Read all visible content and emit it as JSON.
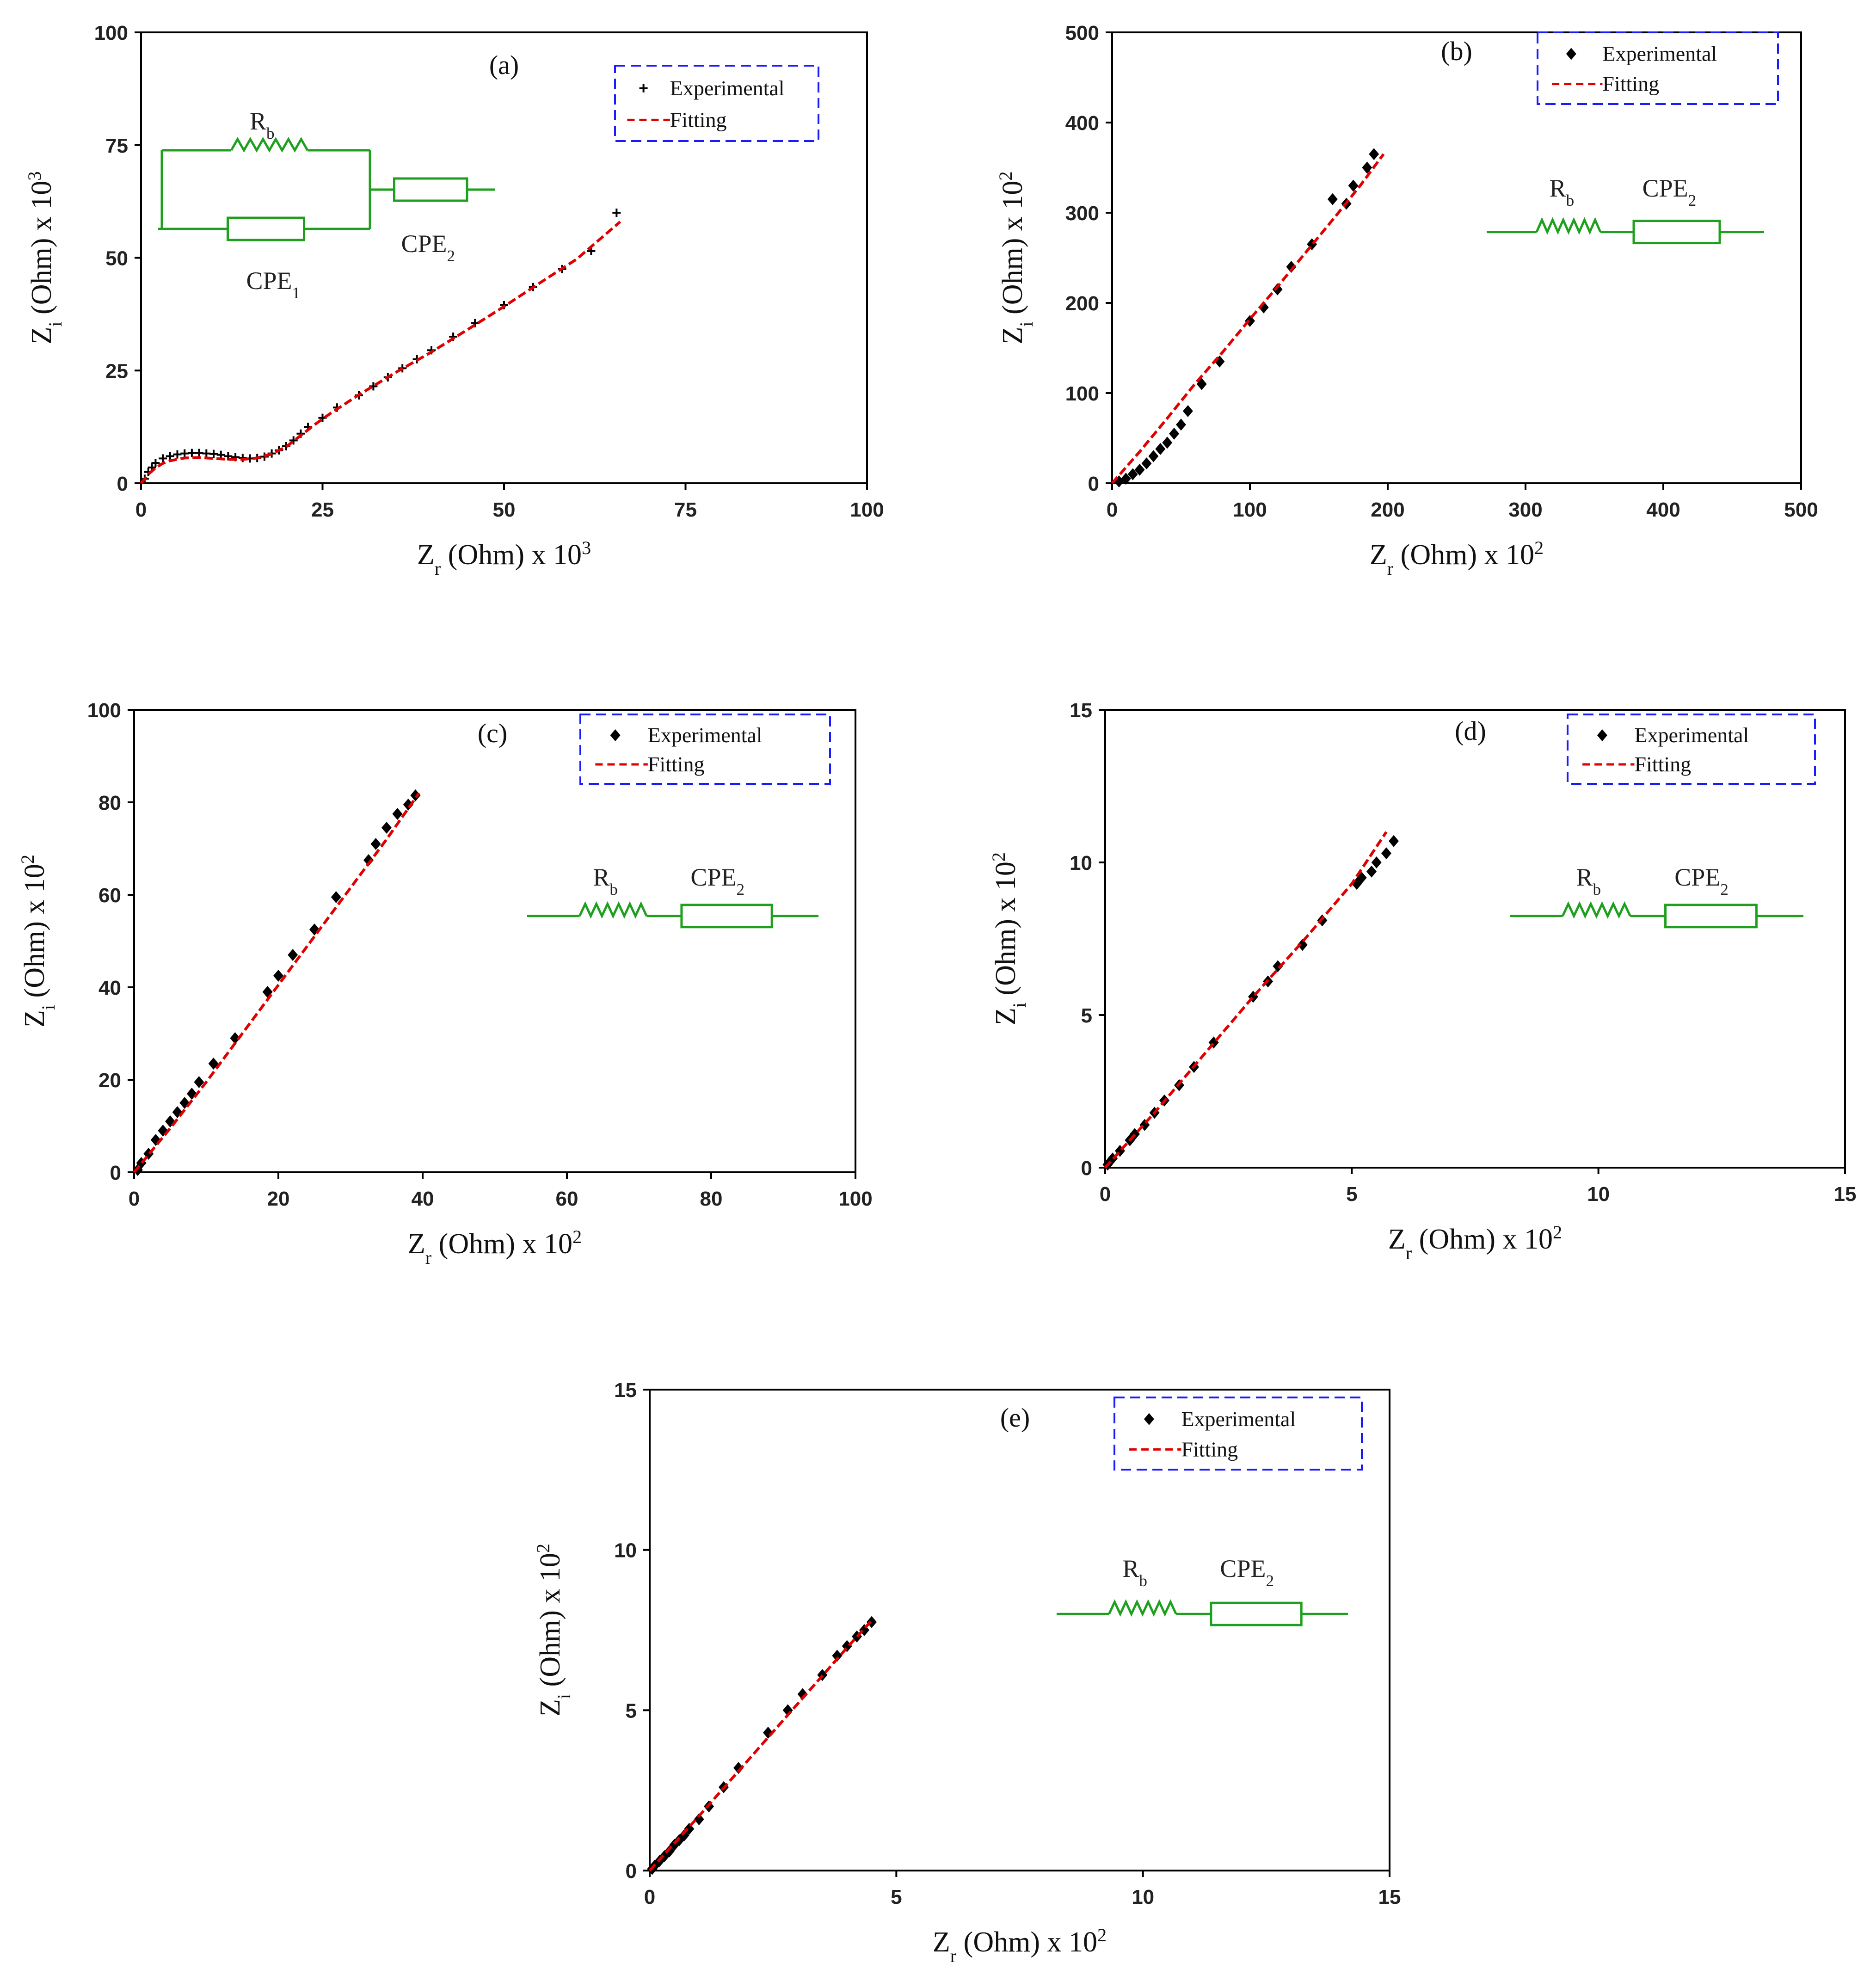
{
  "chart_data": [
    {
      "type": "scatter",
      "panel": "(a)",
      "xlabel": "Z_r (Ohm) x 10^3",
      "ylabel": "Z_i (Ohm) x 10^3",
      "xlim": [
        0,
        100
      ],
      "ylim": [
        0,
        100
      ],
      "xticks": [
        0,
        25,
        50,
        75,
        100
      ],
      "yticks": [
        0,
        25,
        50,
        75,
        100
      ],
      "legend": {
        "experimental": "Experimental",
        "fitting": "Fitting"
      },
      "circuit": {
        "type": "parallel",
        "labels": [
          "R_b",
          "CPE_1",
          "CPE_2"
        ]
      },
      "series": [
        {
          "name": "Experimental",
          "marker": "plus",
          "x": [
            0.5,
            1,
            1.5,
            2,
            3,
            4,
            5,
            6,
            7,
            8,
            9,
            10,
            11,
            12,
            13,
            14,
            15,
            16,
            17,
            18,
            19,
            20,
            21,
            22,
            23,
            25,
            27,
            30,
            32,
            34,
            36,
            38,
            40,
            43,
            46,
            50,
            54,
            58,
            62,
            65.5
          ],
          "y": [
            1,
            2.5,
            3.5,
            4.5,
            5.5,
            6,
            6.4,
            6.6,
            6.7,
            6.7,
            6.6,
            6.5,
            6.3,
            6,
            5.8,
            5.6,
            5.5,
            5.6,
            5.9,
            6.6,
            7.3,
            8.2,
            9.5,
            11,
            12.5,
            14.5,
            16.8,
            19.5,
            21.5,
            23.5,
            25.5,
            27.5,
            29.5,
            32.5,
            35.5,
            39.5,
            43.5,
            47.5,
            51.5,
            60
          ]
        },
        {
          "name": "Fitting",
          "style": "dashed-red",
          "x": [
            0,
            1,
            2,
            3,
            4,
            6,
            8,
            10,
            12,
            14,
            16,
            18,
            20,
            22,
            24,
            26,
            30,
            35,
            40,
            45,
            50,
            55,
            60,
            66
          ],
          "y": [
            0,
            2,
            3.4,
            4.4,
            5,
            5.6,
            5.7,
            5.5,
            5.3,
            5.3,
            5.6,
            6.5,
            8.1,
            10.6,
            13.1,
            15.4,
            19.6,
            24.5,
            29.1,
            34.1,
            39.2,
            44.5,
            49.7,
            58
          ]
        }
      ]
    },
    {
      "type": "scatter",
      "panel": "(b)",
      "xlabel": "Z_r (Ohm) x 10^2",
      "ylabel": "Z_i (Ohm) x 10^2",
      "xlim": [
        0,
        500
      ],
      "ylim": [
        0,
        500
      ],
      "xticks": [
        0,
        100,
        200,
        300,
        400,
        500
      ],
      "yticks": [
        0,
        100,
        200,
        300,
        400,
        500
      ],
      "legend": {
        "experimental": "Experimental",
        "fitting": "Fitting"
      },
      "circuit": {
        "type": "series",
        "labels": [
          "R_b",
          "CPE_2"
        ]
      },
      "series": [
        {
          "name": "Experimental",
          "marker": "diamond",
          "x": [
            5,
            10,
            15,
            20,
            25,
            30,
            35,
            40,
            45,
            50,
            55,
            65,
            78,
            100,
            110,
            120,
            130,
            145,
            160,
            170,
            175,
            185,
            190
          ],
          "y": [
            2,
            5,
            10,
            15,
            22,
            30,
            38,
            45,
            55,
            65,
            80,
            110,
            135,
            180,
            195,
            215,
            240,
            265,
            315,
            310,
            330,
            350,
            365
          ]
        },
        {
          "name": "Fitting",
          "style": "dashed-red",
          "x": [
            0,
            20,
            40,
            60,
            80,
            100,
            120,
            140,
            160,
            180,
            197
          ],
          "y": [
            0,
            35,
            72,
            110,
            145,
            182,
            218,
            255,
            292,
            330,
            365
          ]
        }
      ]
    },
    {
      "type": "scatter",
      "panel": "(c)",
      "xlabel": "Z_r (Ohm) x 10^2",
      "ylabel": "Z_i (Ohm) x 10^2",
      "xlim": [
        0,
        100
      ],
      "ylim": [
        0,
        100
      ],
      "xticks": [
        0,
        20,
        40,
        60,
        80,
        100
      ],
      "yticks": [
        0,
        20,
        40,
        60,
        80,
        100
      ],
      "legend": {
        "experimental": "Experimental",
        "fitting": "Fitting"
      },
      "circuit": {
        "type": "series",
        "labels": [
          "R_b",
          "CPE_2"
        ]
      },
      "series": [
        {
          "name": "Experimental",
          "marker": "diamond",
          "x": [
            0.5,
            1,
            2,
            3,
            4,
            5,
            6,
            7,
            8,
            9,
            11,
            14,
            18.5,
            20,
            22,
            25,
            28,
            32.5,
            33.5,
            35,
            36.5,
            38,
            39
          ],
          "y": [
            0.5,
            2,
            4,
            7,
            9,
            11,
            13,
            15,
            17,
            19.5,
            23.5,
            29,
            39,
            42.5,
            47,
            52.5,
            59.5,
            67.5,
            71,
            74.5,
            77.5,
            79.5,
            81.5
          ]
        },
        {
          "name": "Fitting",
          "style": "dashed-red",
          "x": [
            0,
            5,
            10,
            15,
            20,
            25,
            30,
            35,
            39.5
          ],
          "y": [
            0,
            9.5,
            19.5,
            30,
            40.5,
            51,
            61.5,
            72,
            82
          ]
        }
      ]
    },
    {
      "type": "scatter",
      "panel": "(d)",
      "xlabel": "Z_r (Ohm) x 10^2",
      "ylabel": "Z_i (Ohm) x 10^2",
      "xlim": [
        0,
        15
      ],
      "ylim": [
        0,
        15
      ],
      "xticks": [
        0,
        5,
        10,
        15
      ],
      "yticks": [
        0,
        5,
        10,
        15
      ],
      "legend": {
        "experimental": "Experimental",
        "fitting": "Fitting"
      },
      "circuit": {
        "type": "series",
        "labels": [
          "R_b",
          "CPE_2"
        ]
      },
      "series": [
        {
          "name": "Experimental",
          "marker": "diamond",
          "x": [
            0.05,
            0.15,
            0.3,
            0.5,
            0.6,
            0.8,
            1.0,
            1.2,
            1.5,
            1.8,
            2.2,
            3.0,
            3.3,
            3.5,
            4.0,
            4.4,
            5.1,
            5.2,
            5.4,
            5.5,
            5.7,
            5.85
          ],
          "y": [
            0.1,
            0.3,
            0.55,
            0.9,
            1.1,
            1.4,
            1.8,
            2.2,
            2.7,
            3.3,
            4.1,
            5.6,
            6.1,
            6.6,
            7.3,
            8.1,
            9.3,
            9.5,
            9.7,
            10.0,
            10.3,
            10.7
          ]
        },
        {
          "name": "Fitting",
          "style": "dashed-red",
          "x": [
            0,
            1,
            2,
            3,
            4,
            5,
            5.7
          ],
          "y": [
            0,
            1.8,
            3.7,
            5.6,
            7.4,
            9.3,
            11.0
          ]
        }
      ]
    },
    {
      "type": "scatter",
      "panel": "(e)",
      "xlabel": "Z_r (Ohm) x 10^2",
      "ylabel": "Z_i (Ohm) x 10^2",
      "xlim": [
        0,
        15
      ],
      "ylim": [
        0,
        15
      ],
      "xticks": [
        0,
        5,
        10,
        15
      ],
      "yticks": [
        0,
        5,
        10,
        15
      ],
      "legend": {
        "experimental": "Experimental",
        "fitting": "Fitting"
      },
      "circuit": {
        "type": "series",
        "labels": [
          "R_b",
          "CPE_2"
        ]
      },
      "series": [
        {
          "name": "Experimental",
          "marker": "diamond",
          "x": [
            0.05,
            0.1,
            0.2,
            0.3,
            0.4,
            0.5,
            0.6,
            0.7,
            0.8,
            1.0,
            1.2,
            1.5,
            1.8,
            2.4,
            2.8,
            3.1,
            3.5,
            3.8,
            4.0,
            4.2,
            4.35,
            4.5
          ],
          "y": [
            0.05,
            0.15,
            0.3,
            0.45,
            0.6,
            0.8,
            0.95,
            1.1,
            1.3,
            1.6,
            2.0,
            2.6,
            3.2,
            4.3,
            5.0,
            5.5,
            6.1,
            6.7,
            7.0,
            7.3,
            7.5,
            7.75
          ]
        },
        {
          "name": "Fitting",
          "style": "dashed-red",
          "x": [
            0,
            1,
            2,
            3,
            4,
            4.5
          ],
          "y": [
            0,
            1.7,
            3.45,
            5.2,
            6.95,
            7.8
          ]
        }
      ]
    }
  ],
  "colors": {
    "experimental": "#000000",
    "fitting": "#e00000",
    "circuit": "#1ea01e",
    "legend_border": "#1a1aff",
    "axis": "#000000"
  }
}
